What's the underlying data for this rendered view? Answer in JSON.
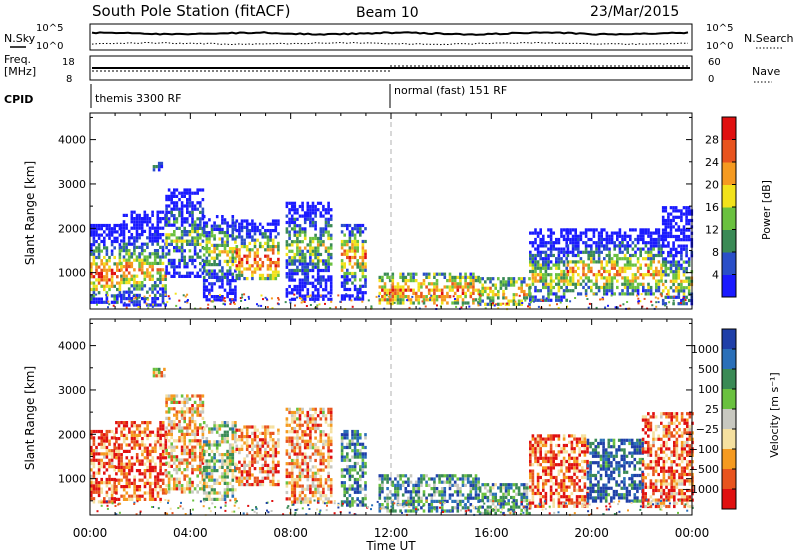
{
  "header": {
    "title": "South Pole Station (fitACF)",
    "beam": "Beam 10",
    "date": "23/Mar/2015"
  },
  "nsky_panel": {
    "left_label": "N.Sky",
    "left_ticks": [
      "10^5",
      "10^0"
    ],
    "right_label": "N.Search",
    "right_ticks": [
      "10^5",
      "10^0"
    ]
  },
  "freq_panel": {
    "left_label_1": "Freq.",
    "left_label_2": "[MHz]",
    "left_ticks": [
      "18",
      "8"
    ],
    "right_label": "Nave",
    "right_ticks": [
      "60",
      "0"
    ]
  },
  "cpid_panel": {
    "label": "CPID",
    "modes": [
      "themis 3300 RF",
      "normal (fast) 151 RF"
    ]
  },
  "colors": {
    "background": "#ffffff",
    "axis": "#000000",
    "dashed_marker": "#b0b0b0"
  },
  "chart_data": [
    {
      "type": "heatmap",
      "title": "",
      "xlabel": "Time UT",
      "ylabel": "Slant Range [km]",
      "x_ticks": [
        "00:00",
        "04:00",
        "08:00",
        "12:00",
        "16:00",
        "20:00",
        "00:00"
      ],
      "xlim_hours": [
        0,
        24
      ],
      "y_ticks": [
        1000,
        2000,
        3000,
        4000
      ],
      "ylim": [
        180,
        4600
      ],
      "mode_change_hour": 12,
      "colorbar": {
        "label": "Power [dB]",
        "ticks": [
          "4",
          "8",
          "12",
          "16",
          "20",
          "24",
          "28"
        ],
        "colors": [
          "#1a1aff",
          "#2a4fc8",
          "#3a8a55",
          "#6ac13f",
          "#f2e21b",
          "#f59a20",
          "#e8541e",
          "#e01010"
        ]
      },
      "echo_regions": [
        {
          "t0": 0.0,
          "t1": 1.2,
          "r0": 300,
          "r1": 2100,
          "core_r": 1000,
          "intensity": 0.85
        },
        {
          "t0": 1.2,
          "t1": 3.0,
          "r0": 300,
          "r1": 2400,
          "core_r": 1100,
          "intensity": 0.7
        },
        {
          "t0": 2.5,
          "t1": 3.0,
          "r0": 3300,
          "r1": 3500,
          "core_r": 3400,
          "intensity": 0.2
        },
        {
          "t0": 3.0,
          "t1": 4.5,
          "r0": 900,
          "r1": 2900,
          "core_r": 1800,
          "intensity": 0.45
        },
        {
          "t0": 4.5,
          "t1": 5.8,
          "r0": 400,
          "r1": 2300,
          "core_r": 1500,
          "intensity": 0.55
        },
        {
          "t0": 5.8,
          "t1": 7.5,
          "r0": 900,
          "r1": 2200,
          "core_r": 1300,
          "intensity": 0.9
        },
        {
          "t0": 7.8,
          "t1": 9.6,
          "r0": 400,
          "r1": 2600,
          "core_r": 1600,
          "intensity": 0.5
        },
        {
          "t0": 10.0,
          "t1": 11.0,
          "r0": 400,
          "r1": 2100,
          "core_r": 1400,
          "intensity": 0.75
        },
        {
          "t0": 11.5,
          "t1": 15.5,
          "r0": 300,
          "r1": 1000,
          "core_r": 600,
          "intensity": 0.75
        },
        {
          "t0": 15.5,
          "t1": 17.5,
          "r0": 300,
          "r1": 900,
          "core_r": 600,
          "intensity": 0.6
        },
        {
          "t0": 17.5,
          "t1": 19.0,
          "r0": 400,
          "r1": 2000,
          "core_r": 900,
          "intensity": 0.55
        },
        {
          "t0": 19.0,
          "t1": 22.8,
          "r0": 500,
          "r1": 2000,
          "core_r": 1050,
          "intensity": 0.7
        },
        {
          "t0": 22.8,
          "t1": 24.0,
          "r0": 300,
          "r1": 2500,
          "core_r": 800,
          "intensity": 0.55
        }
      ]
    },
    {
      "type": "heatmap",
      "title": "",
      "xlabel": "Time UT",
      "ylabel": "Slant Range [km]",
      "x_ticks": [
        "00:00",
        "04:00",
        "08:00",
        "12:00",
        "16:00",
        "20:00",
        "00:00"
      ],
      "xlim_hours": [
        0,
        24
      ],
      "y_ticks": [
        1000,
        2000,
        3000,
        4000
      ],
      "ylim": [
        180,
        4600
      ],
      "mode_change_hour": 12,
      "colorbar": {
        "label": "Velocity [m s⁻¹]",
        "ticks": [
          "1000",
          "500",
          "100",
          "25",
          "−25",
          "−100",
          "−500",
          "−1000"
        ],
        "colors": [
          "#1f3fa8",
          "#2a6fb8",
          "#3a8a55",
          "#6ac13f",
          "#c8c8c0",
          "#f5e0a0",
          "#f59a20",
          "#e8541e",
          "#e01010"
        ]
      },
      "echo_regions": [
        {
          "t0": 0.0,
          "t1": 1.0,
          "r0": 500,
          "r1": 2100,
          "bias": -0.6
        },
        {
          "t0": 1.0,
          "t1": 3.0,
          "r0": 500,
          "r1": 2300,
          "bias": -0.7
        },
        {
          "t0": 2.5,
          "t1": 3.0,
          "r0": 3300,
          "r1": 3500,
          "bias": -0.2
        },
        {
          "t0": 3.0,
          "t1": 4.5,
          "r0": 700,
          "r1": 2900,
          "bias": -0.3
        },
        {
          "t0": 4.5,
          "t1": 5.8,
          "r0": 500,
          "r1": 2300,
          "bias": 0.1
        },
        {
          "t0": 5.8,
          "t1": 7.5,
          "r0": 900,
          "r1": 2200,
          "bias": -0.5
        },
        {
          "t0": 7.8,
          "t1": 9.6,
          "r0": 500,
          "r1": 2600,
          "bias": -0.4
        },
        {
          "t0": 10.0,
          "t1": 11.0,
          "r0": 400,
          "r1": 2100,
          "bias": 0.5
        },
        {
          "t0": 11.5,
          "t1": 15.5,
          "r0": 250,
          "r1": 1100,
          "bias": 0.5
        },
        {
          "t0": 15.5,
          "t1": 17.5,
          "r0": 250,
          "r1": 900,
          "bias": 0.4
        },
        {
          "t0": 17.5,
          "t1": 19.8,
          "r0": 400,
          "r1": 2000,
          "bias": -0.7
        },
        {
          "t0": 19.8,
          "t1": 22.0,
          "r0": 500,
          "r1": 1900,
          "bias": 0.8
        },
        {
          "t0": 22.0,
          "t1": 24.0,
          "r0": 400,
          "r1": 2500,
          "bias": -0.6
        }
      ]
    }
  ]
}
